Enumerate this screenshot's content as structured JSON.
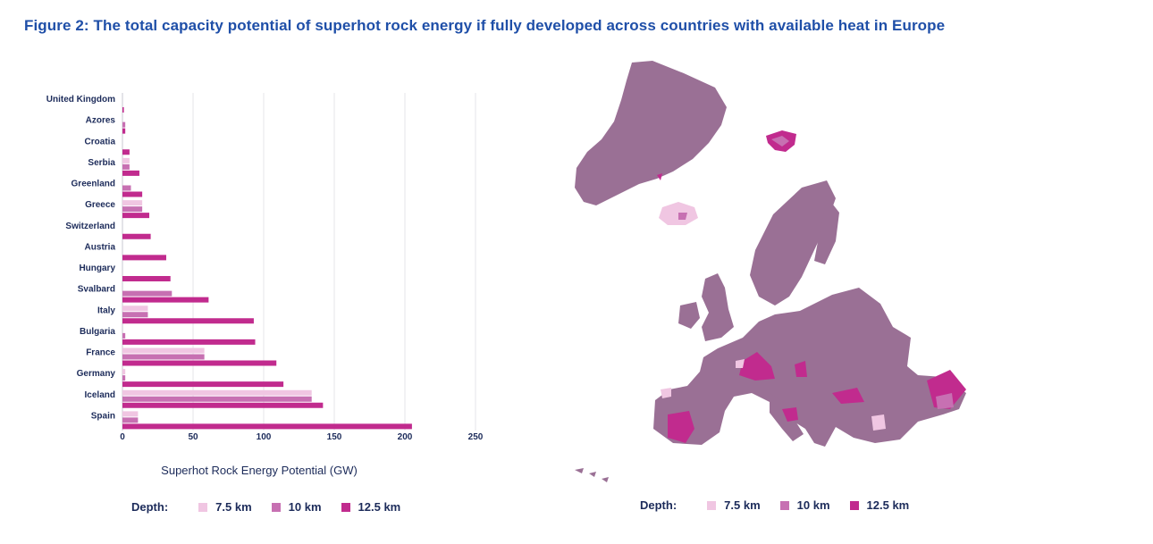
{
  "figure": {
    "title": "Figure 2: The total capacity potential of superhot rock energy if fully developed across countries with available heat in Europe"
  },
  "chart_data": {
    "type": "bar",
    "orientation": "horizontal",
    "categories": [
      "United Kingdom",
      "Azores",
      "Croatia",
      "Serbia",
      "Greenland",
      "Greece",
      "Switzerland",
      "Austria",
      "Hungary",
      "Svalbard",
      "Italy",
      "Bulgaria",
      "France",
      "Germany",
      "Iceland",
      "Spain"
    ],
    "series": [
      {
        "name": "7.5 km",
        "color": "#f0c6e2",
        "values": [
          0,
          0,
          0,
          5,
          0,
          14,
          0,
          0,
          0,
          0,
          18,
          0,
          58,
          2,
          134,
          11
        ]
      },
      {
        "name": "10 km",
        "color": "#c770b2",
        "values": [
          0,
          2,
          0,
          5,
          6,
          14,
          0,
          0,
          0,
          35,
          18,
          2,
          58,
          2,
          134,
          11
        ]
      },
      {
        "name": "12.5 km",
        "color": "#c12b8e",
        "values": [
          1,
          2,
          5,
          12,
          14,
          19,
          20,
          31,
          34,
          61,
          93,
          94,
          109,
          114,
          142,
          205
        ]
      }
    ],
    "xlim": [
      0,
      250
    ],
    "xticks": [
      0,
      50,
      100,
      150,
      200,
      250
    ],
    "xlabel": "Superhot Rock Energy Potential (GW)",
    "grid": true
  },
  "legend": {
    "title": "Depth:",
    "items": [
      "7.5 km",
      "10 km",
      "12.5 km"
    ]
  },
  "map": {
    "base_color": "#9a7095",
    "legend_title": "Depth:",
    "legend_items": [
      "7.5 km",
      "10 km",
      "12.5 km"
    ]
  }
}
